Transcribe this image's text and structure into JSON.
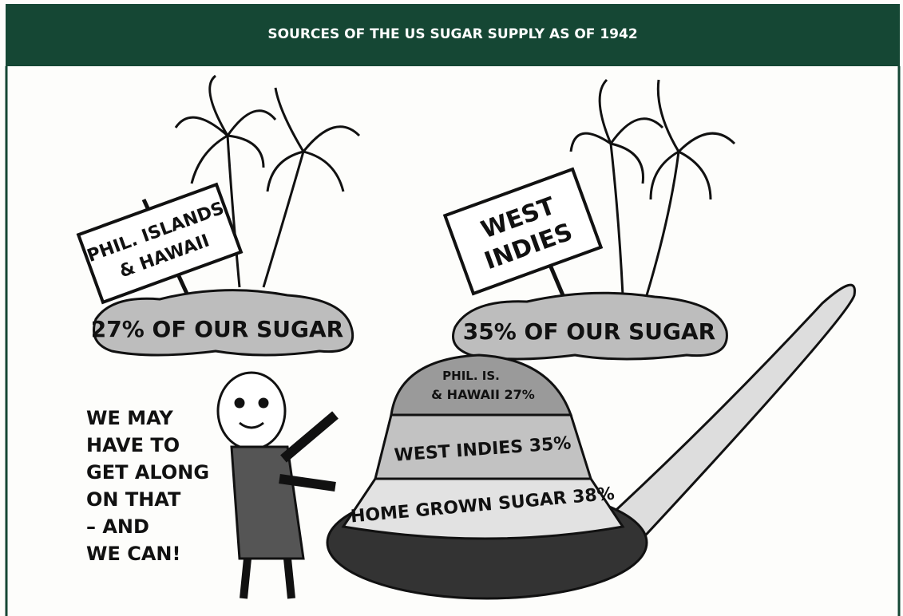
{
  "header": {
    "title": "SOURCES OF THE US SUGAR SUPPLY AS OF 1942"
  },
  "cartoon": {
    "left_island": {
      "sign": [
        "PHIL. ISLANDS",
        "& HAWAII"
      ],
      "label": "27% OF OUR SUGAR"
    },
    "right_island": {
      "sign": [
        "WEST",
        "INDIES"
      ],
      "label": "35% OF OUR SUGAR"
    },
    "spoon_layers": [
      [
        "PHIL. IS.",
        "& HAWAII 27%"
      ],
      [
        "WEST INDIES 35%"
      ],
      [
        "HOME GROWN SUGAR 38%"
      ]
    ],
    "caption": [
      "WE MAY",
      "HAVE TO",
      "GET ALONG",
      "ON THAT",
      "– AND",
      "WE CAN!"
    ]
  }
}
